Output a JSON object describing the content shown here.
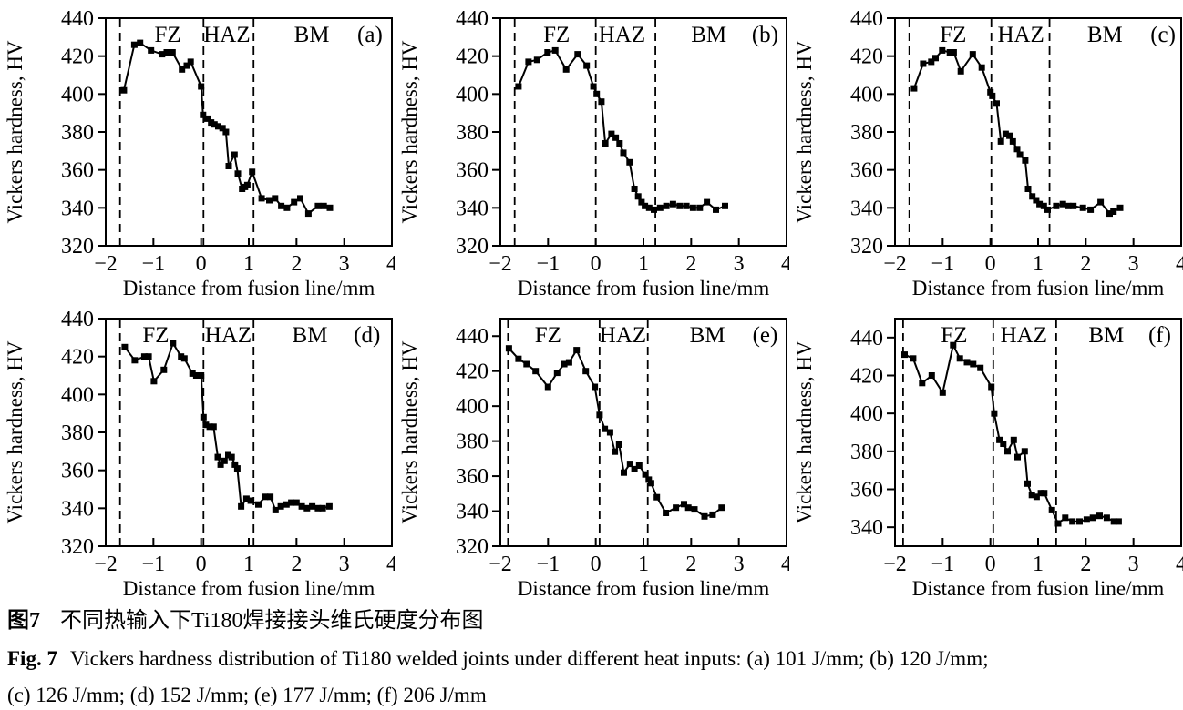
{
  "figure_caption": {
    "zh_label": "图7",
    "zh_text": "不同热输入下Ti180焊接接头维氏硬度分布图",
    "en_label": "Fig. 7",
    "en_line1": "Vickers hardness distribution of Ti180 welded joints under different heat inputs: (a) 101 J/mm; (b) 120 J/mm;",
    "en_line2": "(c) 126 J/mm; (d) 152 J/mm; (e) 177 J/mm; (f) 206 J/mm"
  },
  "style": {
    "line_color": "#000000",
    "marker": "filled-square",
    "boundary_line_style": "dashed"
  },
  "chart_data": [
    {
      "type": "line",
      "panel_label": "(a)",
      "heat_input": "101 J/mm",
      "xlabel": "Distance from fusion line/mm",
      "ylabel": "Vickers hardness, HV",
      "xlim": [
        -2,
        4
      ],
      "ylim": [
        320,
        440
      ],
      "xticks": [
        -2,
        -1,
        0,
        1,
        2,
        3,
        4
      ],
      "yticks": [
        320,
        340,
        360,
        380,
        400,
        420,
        440
      ],
      "boundary_lines_x": [
        -1.7,
        0.05,
        1.1
      ],
      "regions": [
        {
          "label": "FZ",
          "x": -0.7
        },
        {
          "label": "HAZ",
          "x": 0.54
        },
        {
          "label": "BM",
          "x": 2.32
        }
      ],
      "panel_label_x": 3.54,
      "points": [
        [
          -1.62,
          402
        ],
        [
          -1.4,
          426
        ],
        [
          -1.28,
          427
        ],
        [
          -1.05,
          423
        ],
        [
          -0.82,
          421
        ],
        [
          -0.72,
          422
        ],
        [
          -0.6,
          422
        ],
        [
          -0.4,
          413
        ],
        [
          -0.3,
          415
        ],
        [
          -0.22,
          417
        ],
        [
          0.0,
          404
        ],
        [
          0.04,
          389
        ],
        [
          0.13,
          387
        ],
        [
          0.21,
          385
        ],
        [
          0.28,
          384
        ],
        [
          0.36,
          383
        ],
        [
          0.45,
          382
        ],
        [
          0.52,
          380
        ],
        [
          0.58,
          362
        ],
        [
          0.7,
          368
        ],
        [
          0.77,
          358
        ],
        [
          0.86,
          350
        ],
        [
          0.92,
          351
        ],
        [
          0.97,
          352
        ],
        [
          1.07,
          359
        ],
        [
          1.27,
          345
        ],
        [
          1.43,
          344
        ],
        [
          1.55,
          345
        ],
        [
          1.68,
          341
        ],
        [
          1.8,
          340
        ],
        [
          1.95,
          343
        ],
        [
          2.08,
          345
        ],
        [
          2.25,
          337
        ],
        [
          2.45,
          341
        ],
        [
          2.57,
          341
        ],
        [
          2.7,
          340
        ]
      ]
    },
    {
      "type": "line",
      "panel_label": "(b)",
      "heat_input": "120 J/mm",
      "xlabel": "Distance from fusion line/mm",
      "ylabel": "Vickers hardness, HV",
      "xlim": [
        -2,
        4
      ],
      "ylim": [
        320,
        440
      ],
      "xticks": [
        -2,
        -1,
        0,
        1,
        2,
        3,
        4
      ],
      "yticks": [
        320,
        340,
        360,
        380,
        400,
        420,
        440
      ],
      "boundary_lines_x": [
        -1.7,
        0.0,
        1.25
      ],
      "regions": [
        {
          "label": "FZ",
          "x": -0.82
        },
        {
          "label": "HAZ",
          "x": 0.55
        },
        {
          "label": "BM",
          "x": 2.37
        }
      ],
      "panel_label_x": 3.55,
      "points": [
        [
          -1.62,
          404
        ],
        [
          -1.41,
          417
        ],
        [
          -1.23,
          418
        ],
        [
          -1.01,
          422
        ],
        [
          -0.85,
          423
        ],
        [
          -0.62,
          413
        ],
        [
          -0.38,
          421
        ],
        [
          -0.19,
          415
        ],
        [
          -0.05,
          404
        ],
        [
          0.02,
          400
        ],
        [
          0.12,
          396
        ],
        [
          0.2,
          374
        ],
        [
          0.33,
          379
        ],
        [
          0.42,
          377
        ],
        [
          0.5,
          374
        ],
        [
          0.58,
          369
        ],
        [
          0.71,
          364
        ],
        [
          0.81,
          350
        ],
        [
          0.89,
          346
        ],
        [
          0.96,
          343
        ],
        [
          1.03,
          341
        ],
        [
          1.12,
          340
        ],
        [
          1.22,
          339
        ],
        [
          1.35,
          340
        ],
        [
          1.48,
          341
        ],
        [
          1.62,
          342
        ],
        [
          1.76,
          341
        ],
        [
          1.9,
          341
        ],
        [
          2.04,
          340
        ],
        [
          2.18,
          340
        ],
        [
          2.33,
          343
        ],
        [
          2.52,
          339
        ],
        [
          2.71,
          341
        ]
      ]
    },
    {
      "type": "line",
      "panel_label": "(c)",
      "heat_input": "126 J/mm",
      "xlabel": "Distance from fusion line/mm",
      "ylabel": "Vickers hardness, HV",
      "xlim": [
        -2,
        4
      ],
      "ylim": [
        320,
        440
      ],
      "xticks": [
        -2,
        -1,
        0,
        1,
        2,
        3,
        4
      ],
      "yticks": [
        320,
        340,
        360,
        380,
        400,
        420,
        440
      ],
      "boundary_lines_x": [
        -1.7,
        0.02,
        1.24
      ],
      "regions": [
        {
          "label": "FZ",
          "x": -0.78
        },
        {
          "label": "HAZ",
          "x": 0.64
        },
        {
          "label": "BM",
          "x": 2.4
        }
      ],
      "panel_label_x": 3.62,
      "points": [
        [
          -1.6,
          403
        ],
        [
          -1.41,
          416
        ],
        [
          -1.24,
          417
        ],
        [
          -1.15,
          419
        ],
        [
          -1.01,
          423
        ],
        [
          -0.85,
          422
        ],
        [
          -0.77,
          422
        ],
        [
          -0.62,
          412
        ],
        [
          -0.37,
          421
        ],
        [
          -0.18,
          414
        ],
        [
          0.0,
          401
        ],
        [
          0.04,
          399
        ],
        [
          0.13,
          395
        ],
        [
          0.22,
          375
        ],
        [
          0.32,
          379
        ],
        [
          0.4,
          378
        ],
        [
          0.47,
          375
        ],
        [
          0.56,
          371
        ],
        [
          0.62,
          368
        ],
        [
          0.73,
          365
        ],
        [
          0.79,
          350
        ],
        [
          0.88,
          346
        ],
        [
          0.96,
          344
        ],
        [
          1.03,
          342
        ],
        [
          1.12,
          341
        ],
        [
          1.2,
          339
        ],
        [
          1.38,
          341
        ],
        [
          1.52,
          342
        ],
        [
          1.63,
          341
        ],
        [
          1.74,
          341
        ],
        [
          1.94,
          340
        ],
        [
          2.1,
          339
        ],
        [
          2.31,
          343
        ],
        [
          2.5,
          337
        ],
        [
          2.58,
          338
        ],
        [
          2.72,
          340
        ]
      ]
    },
    {
      "type": "line",
      "panel_label": "(d)",
      "heat_input": "152 J/mm",
      "xlabel": "Distance from fusion line/mm",
      "ylabel": "Vickers hardness, HV",
      "xlim": [
        -2,
        4
      ],
      "ylim": [
        320,
        440
      ],
      "xticks": [
        -2,
        -1,
        0,
        1,
        2,
        3,
        4
      ],
      "yticks": [
        320,
        340,
        360,
        380,
        400,
        420,
        440
      ],
      "boundary_lines_x": [
        -1.7,
        0.05,
        1.1
      ],
      "regions": [
        {
          "label": "FZ",
          "x": -0.95
        },
        {
          "label": "HAZ",
          "x": 0.57
        },
        {
          "label": "BM",
          "x": 2.28
        }
      ],
      "panel_label_x": 3.48,
      "points": [
        [
          -1.6,
          425
        ],
        [
          -1.39,
          418
        ],
        [
          -1.19,
          420
        ],
        [
          -1.1,
          420
        ],
        [
          -0.99,
          407
        ],
        [
          -0.78,
          413
        ],
        [
          -0.59,
          427
        ],
        [
          -0.42,
          420
        ],
        [
          -0.35,
          419
        ],
        [
          -0.18,
          411
        ],
        [
          -0.1,
          410
        ],
        [
          0.0,
          410
        ],
        [
          0.05,
          388
        ],
        [
          0.1,
          384
        ],
        [
          0.18,
          383
        ],
        [
          0.26,
          383
        ],
        [
          0.35,
          367
        ],
        [
          0.41,
          363
        ],
        [
          0.49,
          365
        ],
        [
          0.57,
          368
        ],
        [
          0.64,
          367
        ],
        [
          0.71,
          363
        ],
        [
          0.76,
          361
        ],
        [
          0.84,
          341
        ],
        [
          0.95,
          345
        ],
        [
          1.04,
          344
        ],
        [
          1.2,
          342
        ],
        [
          1.34,
          346
        ],
        [
          1.45,
          346
        ],
        [
          1.56,
          339
        ],
        [
          1.67,
          341
        ],
        [
          1.79,
          342
        ],
        [
          1.89,
          343
        ],
        [
          2.0,
          343
        ],
        [
          2.11,
          341
        ],
        [
          2.22,
          340
        ],
        [
          2.33,
          341
        ],
        [
          2.45,
          340
        ],
        [
          2.55,
          340
        ],
        [
          2.69,
          341
        ]
      ]
    },
    {
      "type": "line",
      "panel_label": "(e)",
      "heat_input": "177 J/mm",
      "xlabel": "Distance from fusion line/mm",
      "ylabel": "Vickers hardness, HV",
      "xlim": [
        -2,
        4
      ],
      "ylim": [
        320,
        450
      ],
      "xticks": [
        -2,
        -1,
        0,
        1,
        2,
        3,
        4
      ],
      "yticks": [
        320,
        340,
        360,
        380,
        400,
        420,
        440
      ],
      "boundary_lines_x": [
        -1.84,
        0.08,
        1.09
      ],
      "regions": [
        {
          "label": "FZ",
          "x": -1.0
        },
        {
          "label": "HAZ",
          "x": 0.57
        },
        {
          "label": "BM",
          "x": 2.34
        }
      ],
      "panel_label_x": 3.55,
      "points": [
        [
          -1.82,
          433
        ],
        [
          -1.62,
          427
        ],
        [
          -1.45,
          424
        ],
        [
          -1.26,
          420
        ],
        [
          -1.0,
          411
        ],
        [
          -0.81,
          419
        ],
        [
          -0.66,
          424
        ],
        [
          -0.56,
          425
        ],
        [
          -0.4,
          432
        ],
        [
          -0.21,
          420
        ],
        [
          -0.02,
          411
        ],
        [
          0.08,
          395
        ],
        [
          0.19,
          387
        ],
        [
          0.3,
          385
        ],
        [
          0.4,
          374
        ],
        [
          0.49,
          378
        ],
        [
          0.59,
          362
        ],
        [
          0.72,
          367
        ],
        [
          0.81,
          364
        ],
        [
          0.91,
          366
        ],
        [
          1.04,
          361
        ],
        [
          1.11,
          358
        ],
        [
          1.16,
          356
        ],
        [
          1.28,
          348
        ],
        [
          1.47,
          339
        ],
        [
          1.68,
          342
        ],
        [
          1.85,
          344
        ],
        [
          1.94,
          342
        ],
        [
          2.07,
          341
        ],
        [
          2.28,
          337
        ],
        [
          2.45,
          338
        ],
        [
          2.64,
          342
        ]
      ]
    },
    {
      "type": "line",
      "panel_label": "(f)",
      "heat_input": "206 J/mm",
      "xlabel": "Distance from fusion line/mm",
      "ylabel": "Vickers hardness, HV",
      "xlim": [
        -2,
        4
      ],
      "ylim": [
        330,
        450
      ],
      "xticks": [
        -2,
        -1,
        0,
        1,
        2,
        3,
        4
      ],
      "yticks": [
        340,
        360,
        380,
        400,
        420,
        440
      ],
      "boundary_lines_x": [
        -1.83,
        0.06,
        1.38
      ],
      "regions": [
        {
          "label": "FZ",
          "x": -0.76
        },
        {
          "label": "HAZ",
          "x": 0.7
        },
        {
          "label": "BM",
          "x": 2.43
        }
      ],
      "panel_label_x": 3.55,
      "points": [
        [
          -1.8,
          431
        ],
        [
          -1.62,
          429
        ],
        [
          -1.43,
          416
        ],
        [
          -1.23,
          420
        ],
        [
          -1.0,
          411
        ],
        [
          -0.78,
          436
        ],
        [
          -0.64,
          429
        ],
        [
          -0.49,
          427
        ],
        [
          -0.36,
          426
        ],
        [
          -0.21,
          424
        ],
        [
          0.02,
          414
        ],
        [
          0.08,
          400
        ],
        [
          0.19,
          386
        ],
        [
          0.27,
          384
        ],
        [
          0.36,
          380
        ],
        [
          0.49,
          386
        ],
        [
          0.57,
          377
        ],
        [
          0.72,
          380
        ],
        [
          0.78,
          363
        ],
        [
          0.87,
          357
        ],
        [
          0.97,
          356
        ],
        [
          1.06,
          358
        ],
        [
          1.13,
          358
        ],
        [
          1.29,
          349
        ],
        [
          1.42,
          342
        ],
        [
          1.57,
          345
        ],
        [
          1.72,
          343
        ],
        [
          1.87,
          343
        ],
        [
          2.02,
          344
        ],
        [
          2.15,
          345
        ],
        [
          2.29,
          346
        ],
        [
          2.44,
          345
        ],
        [
          2.59,
          343
        ],
        [
          2.69,
          343
        ]
      ]
    }
  ]
}
